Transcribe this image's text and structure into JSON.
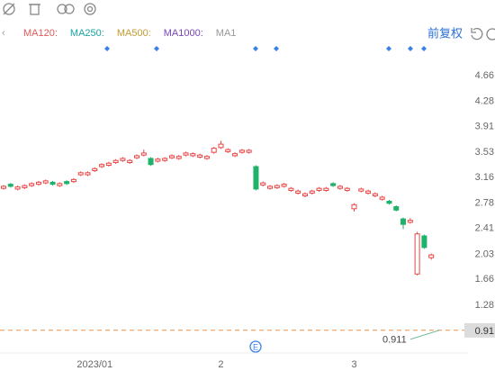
{
  "chart_data": {
    "type": "candlestick",
    "ma_labels": [
      {
        "text": "MA120:",
        "color": "#e05a5a"
      },
      {
        "text": "MA250:",
        "color": "#1aa3a3"
      },
      {
        "text": "MA500:",
        "color": "#c39a2e"
      },
      {
        "text": "MA1000:",
        "color": "#7a45b8"
      },
      {
        "text": "MA1",
        "color": "#999999"
      }
    ],
    "adjust_mode": "前复权",
    "categories": [
      null,
      null,
      null,
      null,
      null,
      null,
      null,
      null,
      null,
      null,
      null,
      null,
      null,
      "2023/01",
      null,
      null,
      null,
      null,
      null,
      null,
      null,
      null,
      null,
      null,
      null,
      null,
      null,
      null,
      null,
      null,
      null,
      "2",
      null,
      null,
      null,
      null,
      null,
      null,
      null,
      null,
      null,
      null,
      null,
      null,
      null,
      null,
      null,
      null,
      null,
      null,
      "3",
      null,
      null,
      null,
      null,
      null,
      null,
      null,
      null,
      null,
      null,
      null
    ],
    "open": [
      3.0,
      3.06,
      2.99,
      3.01,
      3.04,
      3.06,
      3.08,
      3.09,
      3.04,
      3.1,
      3.1,
      3.2,
      3.2,
      3.26,
      3.32,
      3.34,
      3.38,
      3.41,
      3.38,
      3.45,
      3.49,
      3.44,
      3.4,
      3.41,
      3.45,
      3.44,
      3.49,
      3.48,
      3.46,
      3.44,
      3.53,
      3.6,
      3.54,
      3.48,
      3.53,
      3.53,
      3.32,
      3.05,
      3.0,
      3.01,
      3.03,
      2.97,
      2.93,
      2.89,
      2.93,
      2.97,
      2.97,
      3.07,
      3.0,
      2.97,
      2.7,
      2.96,
      2.93,
      2.89,
      2.84,
      2.81,
      2.73,
      2.55,
      2.5,
      1.74,
      2.3,
      1.98
    ],
    "high": [
      3.05,
      3.08,
      3.04,
      3.06,
      3.09,
      3.11,
      3.13,
      3.11,
      3.09,
      3.12,
      3.15,
      3.25,
      3.25,
      3.31,
      3.37,
      3.39,
      3.43,
      3.46,
      3.43,
      3.5,
      3.57,
      3.46,
      3.45,
      3.46,
      3.5,
      3.49,
      3.54,
      3.53,
      3.51,
      3.49,
      3.61,
      3.7,
      3.59,
      3.53,
      3.58,
      3.58,
      3.34,
      3.1,
      3.05,
      3.06,
      3.08,
      3.02,
      2.98,
      2.94,
      2.98,
      3.02,
      3.02,
      3.09,
      3.05,
      3.02,
      2.78,
      3.01,
      2.98,
      2.94,
      2.89,
      2.83,
      2.75,
      2.57,
      2.56,
      2.36,
      2.32,
      2.04
    ],
    "low": [
      2.98,
      3.01,
      2.97,
      2.99,
      3.02,
      3.04,
      3.06,
      3.04,
      3.02,
      3.05,
      3.08,
      3.18,
      3.18,
      3.24,
      3.3,
      3.32,
      3.36,
      3.39,
      3.36,
      3.43,
      3.47,
      3.33,
      3.38,
      3.39,
      3.43,
      3.42,
      3.47,
      3.46,
      3.44,
      3.42,
      3.51,
      3.58,
      3.52,
      3.46,
      3.51,
      3.51,
      2.97,
      3.03,
      2.98,
      2.99,
      3.01,
      2.95,
      2.91,
      2.87,
      2.91,
      2.95,
      2.95,
      3.02,
      2.98,
      2.95,
      2.66,
      2.94,
      2.91,
      2.87,
      2.82,
      2.76,
      2.66,
      2.4,
      2.48,
      1.72,
      2.11,
      1.95
    ],
    "close": [
      3.03,
      3.03,
      3.02,
      3.04,
      3.07,
      3.09,
      3.11,
      3.06,
      3.07,
      3.07,
      3.13,
      3.23,
      3.23,
      3.29,
      3.35,
      3.37,
      3.41,
      3.44,
      3.41,
      3.48,
      3.52,
      3.35,
      3.43,
      3.44,
      3.48,
      3.47,
      3.52,
      3.51,
      3.49,
      3.47,
      3.59,
      3.65,
      3.57,
      3.51,
      3.56,
      3.56,
      2.99,
      3.08,
      3.03,
      3.04,
      3.06,
      3.0,
      2.96,
      2.92,
      2.96,
      3.0,
      3.0,
      3.04,
      3.03,
      3.0,
      2.76,
      2.99,
      2.96,
      2.92,
      2.87,
      2.78,
      2.68,
      2.47,
      2.53,
      2.33,
      2.13,
      2.02
    ],
    "up_color": "#e84545",
    "down_color": "#1fb26b",
    "ylim": [
      0.67,
      4.95
    ],
    "yticks": [
      4.66,
      4.28,
      3.91,
      3.53,
      3.16,
      2.78,
      2.41,
      2.03,
      1.66,
      1.28
    ],
    "current_price": 0.91,
    "low_annotation": 0.911,
    "event_label": "E"
  }
}
